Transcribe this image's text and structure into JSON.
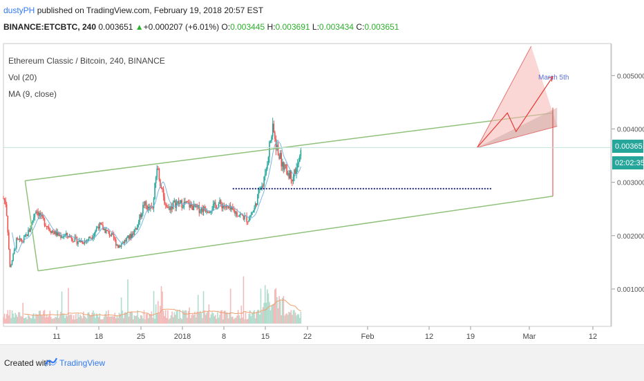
{
  "header": {
    "author": "dustyPH",
    "published_text": "published on TradingView.com, February 19, 2018 20:57 EST",
    "symbol": "BINANCE:ETCBTC, 240",
    "last_price": "0.003651",
    "change": "+0.000207 (+6.01%)",
    "open_label": "O:",
    "open": "0.003445",
    "high_label": "H:",
    "high": "0.003691",
    "low_label": "L:",
    "low": "0.003434",
    "close_label": "C:",
    "close": "0.003651"
  },
  "legend": {
    "title": "Ethereum Classic / Bitcoin, 240, BINANCE",
    "volume": "Vol (20)",
    "ma": "MA (9, close)"
  },
  "annotation": "March 5th",
  "price_labels": {
    "current": "0.003651",
    "countdown": "02:02:35"
  },
  "footer": {
    "created_with": "Created with",
    "brand": "TradingView"
  },
  "colors": {
    "up": "#26a69a",
    "down": "#ef5350",
    "channel": "#8fc17a",
    "dotted": "#1a237e",
    "projection": "#e53935",
    "ma": "#7ab5e0"
  },
  "chart_data": {
    "type": "candlestick",
    "title": "Ethereum Classic / Bitcoin, 240, BINANCE",
    "yaxis": {
      "ticks": [
        "0.001000",
        "0.002000",
        "0.003000",
        "0.004000",
        "0.005000"
      ],
      "range": [
        0.0003,
        0.0056
      ]
    },
    "xaxis": {
      "ticks": [
        "11",
        "18",
        "25",
        "2018",
        "8",
        "15",
        "22",
        "Feb",
        "12",
        "19",
        "Mar",
        "12"
      ]
    },
    "price_path": [
      [
        0,
        0.0027
      ],
      [
        0.06,
        0.0026
      ],
      [
        0.1,
        0.0021
      ],
      [
        0.15,
        0.0014
      ],
      [
        0.22,
        0.0016
      ],
      [
        0.3,
        0.0019
      ],
      [
        0.45,
        0.0019
      ],
      [
        0.6,
        0.0021
      ],
      [
        0.75,
        0.0025
      ],
      [
        0.9,
        0.0023
      ],
      [
        1.1,
        0.0021
      ],
      [
        1.3,
        0.002
      ],
      [
        1.5,
        0.002
      ],
      [
        1.7,
        0.0019
      ],
      [
        1.9,
        0.0019
      ],
      [
        2.05,
        0.002
      ],
      [
        2.2,
        0.0022
      ],
      [
        2.35,
        0.0021
      ],
      [
        2.5,
        0.002
      ],
      [
        2.65,
        0.0018
      ],
      [
        2.8,
        0.0019
      ],
      [
        2.95,
        0.002
      ],
      [
        3.1,
        0.0022
      ],
      [
        3.25,
        0.0026
      ],
      [
        3.35,
        0.0025
      ],
      [
        3.45,
        0.0025
      ],
      [
        3.55,
        0.0033
      ],
      [
        3.6,
        0.0031
      ],
      [
        3.7,
        0.0027
      ],
      [
        3.8,
        0.0025
      ],
      [
        3.95,
        0.0026
      ],
      [
        4.2,
        0.0026
      ],
      [
        4.5,
        0.0025
      ],
      [
        4.75,
        0.0025
      ],
      [
        5.0,
        0.0026
      ],
      [
        5.2,
        0.0025
      ],
      [
        5.45,
        0.0024
      ],
      [
        5.65,
        0.0023
      ],
      [
        5.8,
        0.0025
      ],
      [
        5.9,
        0.0028
      ],
      [
        6.05,
        0.0031
      ],
      [
        6.15,
        0.0037
      ],
      [
        6.23,
        0.004
      ],
      [
        6.3,
        0.0037
      ],
      [
        6.42,
        0.0034
      ],
      [
        6.55,
        0.0032
      ],
      [
        6.68,
        0.0031
      ],
      [
        6.8,
        0.0033
      ],
      [
        6.9,
        0.0036
      ]
    ],
    "annotations": [
      {
        "type": "channel",
        "upper": [
          [
            0.0,
            0.00303
          ],
          [
            7.5,
            0.00432
          ]
        ],
        "lower": [
          [
            0.0,
            0.00134
          ],
          [
            7.5,
            0.00274
          ]
        ]
      },
      {
        "type": "horizontal-dotted",
        "y": 0.00288
      },
      {
        "type": "text",
        "label": "March 5th"
      }
    ]
  }
}
